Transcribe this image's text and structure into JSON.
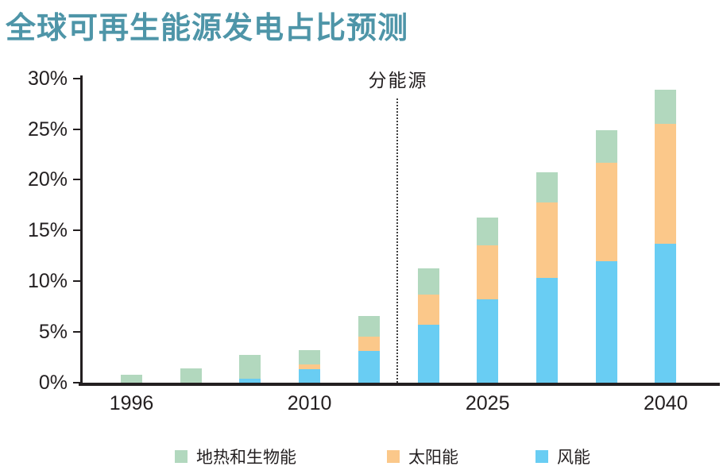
{
  "page": {
    "background": "#ffffff"
  },
  "chart_data": {
    "type": "bar",
    "stacked": true,
    "title": "全球可再生能源发电占比预测",
    "title_color": "#4e95a8",
    "annotation": "分能源",
    "divider_after_bar_index": 4,
    "axis_color": "#231f20",
    "grid": false,
    "legend_position": "bottom",
    "ylim": [
      0,
      30
    ],
    "y_tick_labels": [
      "0%",
      "5%",
      "10%",
      "15%",
      "20%",
      "25%",
      "30%"
    ],
    "x_tick_labels": [
      {
        "bar_index": 0,
        "label": "1996"
      },
      {
        "bar_index": 3,
        "label": "2010"
      },
      {
        "bar_index": 6,
        "label": "2025"
      },
      {
        "bar_index": 9,
        "label": "2040"
      }
    ],
    "series": [
      {
        "key": "wind",
        "name": "风能",
        "color": "#69cdf3",
        "values": [
          0,
          0,
          0.4,
          1.3,
          3.1,
          5.7,
          8.2,
          10.3,
          12.0,
          13.7
        ]
      },
      {
        "key": "solar",
        "name": "太阳能",
        "color": "#fbc88a",
        "values": [
          0,
          0,
          0,
          0.5,
          1.4,
          3.0,
          5.3,
          7.5,
          9.7,
          11.8
        ]
      },
      {
        "key": "geo",
        "name": "地热和生物能",
        "color": "#b2d8be",
        "values": [
          0.8,
          1.4,
          2.3,
          1.4,
          2.1,
          2.6,
          2.8,
          2.9,
          3.2,
          3.4
        ]
      }
    ],
    "totals": [
      0.8,
      1.4,
      2.7,
      3.2,
      6.6,
      11.3,
      16.3,
      20.7,
      24.9,
      28.9
    ],
    "legend": [
      {
        "key": "geo",
        "label": "地热和生物能",
        "color": "#b2d8be"
      },
      {
        "key": "solar",
        "label": "太阳能",
        "color": "#fbc88a"
      },
      {
        "key": "wind",
        "label": "风能",
        "color": "#69cdf3"
      }
    ]
  }
}
